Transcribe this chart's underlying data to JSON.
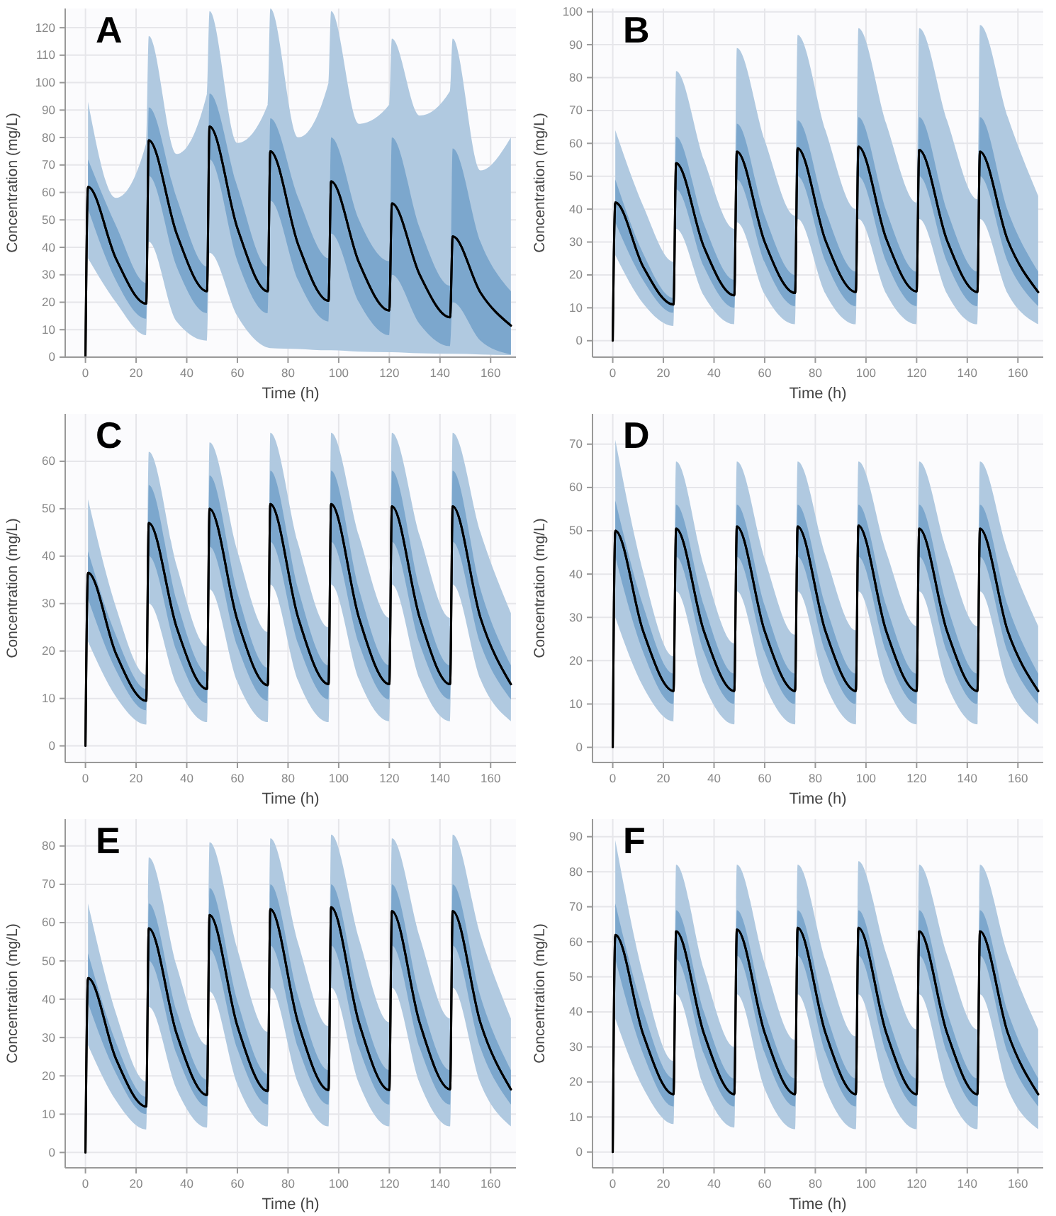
{
  "chart_data": [
    {
      "type": "line",
      "title": "A",
      "xlabel": "Time (h)",
      "ylabel": "Concentration (mg/L)",
      "grid": true,
      "xlim": [
        -8,
        170
      ],
      "xticks": [
        0,
        20,
        40,
        60,
        80,
        100,
        120,
        140,
        160
      ],
      "ylim": [
        0,
        127
      ],
      "yticks": [
        0,
        10,
        20,
        30,
        40,
        50,
        60,
        70,
        80,
        90,
        100,
        110,
        120
      ],
      "x": [
        0,
        1,
        12,
        24,
        25,
        36,
        48,
        49,
        60,
        72,
        73,
        84,
        96,
        97,
        108,
        120,
        121,
        132,
        144,
        145,
        156,
        168
      ],
      "series": [
        {
          "color": "#000000",
          "values": [
            0,
            62,
            36,
            19.5,
            79,
            45,
            24,
            84,
            47,
            24,
            75,
            41,
            20.5,
            64,
            34.5,
            17,
            56,
            30,
            14.5,
            44,
            23.5,
            11.5
          ],
          "lower": [
            null,
            36,
            20,
            8,
            42,
            13,
            6,
            38,
            15,
            3.5,
            3.3,
            3,
            2.5,
            2.5,
            2,
            1.8,
            1.8,
            1.4,
            1.2,
            1.2,
            1,
            0.8
          ],
          "upper": [
            null,
            93,
            58,
            78,
            117,
            74,
            96,
            126,
            78,
            92,
            127,
            80,
            100,
            126,
            85,
            92,
            116,
            88,
            97,
            116,
            68,
            80
          ]
        },
        {
          "color": "#000000",
          "values": [
            0,
            62,
            36,
            19.5,
            79,
            45,
            24,
            84,
            47,
            24,
            75,
            41,
            20.5,
            64,
            34.5,
            17,
            56,
            30,
            14.5,
            44,
            23.5,
            11.5
          ],
          "lower": [
            null,
            54,
            28,
            14,
            66,
            33,
            16,
            72,
            35,
            16,
            57,
            28,
            13,
            45,
            20,
            8,
            30,
            12,
            4,
            20,
            6,
            1
          ],
          "upper": [
            null,
            72,
            48,
            27,
            91,
            58,
            33,
            96,
            62,
            33,
            87,
            58,
            36,
            80,
            50,
            35,
            80,
            47,
            26,
            76,
            42,
            24
          ]
        }
      ]
    },
    {
      "type": "line",
      "title": "B",
      "xlabel": "Time (h)",
      "ylabel": "Concentration (mg/L)",
      "grid": true,
      "xlim": [
        -8,
        170
      ],
      "xticks": [
        0,
        20,
        40,
        60,
        80,
        100,
        120,
        140,
        160
      ],
      "ylim": [
        -5,
        101
      ],
      "yticks": [
        0,
        10,
        20,
        30,
        40,
        50,
        60,
        70,
        80,
        90,
        100
      ],
      "x": [
        0,
        1,
        12,
        24,
        25,
        36,
        48,
        49,
        60,
        72,
        73,
        84,
        96,
        97,
        108,
        120,
        121,
        132,
        144,
        145,
        156,
        168
      ],
      "series": [
        {
          "color": "#000000",
          "values": [
            0,
            42,
            22.5,
            11,
            54,
            28.5,
            13.8,
            57.5,
            30,
            14.5,
            58.5,
            30.5,
            14.8,
            59,
            31,
            15,
            58,
            30.5,
            14.8,
            57.5,
            30.5,
            14.8
          ],
          "lower": [
            null,
            26,
            11.3,
            4.5,
            34,
            13.7,
            5,
            36,
            14.1,
            5,
            37,
            14.3,
            5,
            37,
            14.3,
            5,
            37,
            14.3,
            5,
            37,
            14.3,
            5
          ],
          "upper": [
            null,
            64,
            41,
            24,
            82,
            55,
            34,
            89,
            61,
            38,
            93,
            64,
            40,
            95,
            66,
            42,
            95,
            67,
            43,
            96,
            68,
            44
          ]
        },
        {
          "color": "#000000",
          "values": [
            0,
            42,
            22.5,
            11,
            54,
            28.5,
            13.8,
            57.5,
            30,
            14.5,
            58.5,
            30.5,
            14.8,
            59,
            31,
            15,
            58,
            30.5,
            14.8,
            57.5,
            30.5,
            14.8
          ],
          "lower": [
            null,
            36,
            18.4,
            8.5,
            46,
            22.5,
            10,
            49,
            23.8,
            10.5,
            50,
            24,
            10.5,
            50,
            24,
            10.5,
            50,
            24,
            10.5,
            50,
            24,
            10.5
          ],
          "upper": [
            null,
            49,
            26.5,
            13,
            62,
            35.5,
            18.5,
            66,
            38,
            20,
            67,
            39.5,
            21,
            68,
            39.5,
            21,
            68,
            39.5,
            21,
            68,
            39.5,
            21
          ]
        }
      ]
    },
    {
      "type": "line",
      "title": "C",
      "xlabel": "Time (h)",
      "ylabel": "Concentration (mg/L)",
      "grid": true,
      "xlim": [
        -8,
        170
      ],
      "xticks": [
        0,
        20,
        40,
        60,
        80,
        100,
        120,
        140,
        160
      ],
      "ylim": [
        -3.5,
        70
      ],
      "yticks": [
        0,
        10,
        20,
        30,
        40,
        50,
        60
      ],
      "x": [
        0,
        1,
        12,
        24,
        25,
        36,
        48,
        49,
        60,
        72,
        73,
        84,
        96,
        97,
        108,
        120,
        121,
        132,
        144,
        145,
        156,
        168
      ],
      "series": [
        {
          "color": "#000000",
          "values": [
            0,
            36.5,
            19.5,
            9.5,
            47,
            25,
            12,
            50,
            26.5,
            12.8,
            51,
            27,
            13,
            51,
            27,
            13,
            50.5,
            27,
            13,
            50.5,
            27,
            13
          ],
          "lower": [
            null,
            22,
            10.4,
            4.5,
            30,
            12.9,
            5,
            33,
            13.5,
            5,
            34,
            13.7,
            5,
            34,
            14,
            5.2,
            34,
            14,
            5.2,
            34,
            14,
            5.2
          ],
          "upper": [
            null,
            52,
            29.3,
            15,
            62,
            38,
            21,
            64,
            41,
            24,
            66,
            42.6,
            25,
            66,
            44.3,
            27,
            66,
            44.3,
            27,
            66,
            45,
            28
          ]
        },
        {
          "color": "#000000",
          "values": [
            0,
            36.5,
            19.5,
            9.5,
            47,
            25,
            12,
            50,
            26.5,
            12.8,
            51,
            27,
            13,
            51,
            27,
            13,
            50.5,
            27,
            13,
            50.5,
            27,
            13
          ],
          "lower": [
            null,
            31,
            16,
            7.5,
            40,
            20,
            9,
            42,
            21,
            9.5,
            43,
            21.5,
            9.8,
            43,
            21.5,
            9.8,
            43,
            21.5,
            9.8,
            43,
            21.5,
            9.8
          ],
          "upper": [
            null,
            41,
            23.3,
            12,
            55,
            30.6,
            15.5,
            57,
            32.2,
            16.5,
            58,
            33,
            17,
            58,
            33,
            17,
            58,
            33,
            17,
            58,
            33,
            17
          ]
        }
      ]
    },
    {
      "type": "line",
      "title": "D",
      "xlabel": "Time (h)",
      "ylabel": "Concentration (mg/L)",
      "grid": true,
      "xlim": [
        -8,
        170
      ],
      "xticks": [
        0,
        20,
        40,
        60,
        80,
        100,
        120,
        140,
        160
      ],
      "ylim": [
        -3.5,
        77
      ],
      "yticks": [
        0,
        10,
        20,
        30,
        40,
        50,
        60,
        70
      ],
      "x": [
        0,
        1,
        12,
        24,
        25,
        36,
        48,
        49,
        60,
        72,
        73,
        84,
        96,
        97,
        108,
        120,
        121,
        132,
        144,
        145,
        156,
        168
      ],
      "series": [
        {
          "color": "#000000",
          "values": [
            0,
            50,
            26.8,
            13,
            50.5,
            26.8,
            13,
            51,
            26.8,
            13,
            51,
            26.8,
            13,
            51.2,
            26.8,
            13,
            50.5,
            26.8,
            13,
            50.5,
            26.8,
            13
          ],
          "lower": [
            null,
            30,
            14,
            6,
            36,
            14.5,
            5.3,
            36,
            14.5,
            5.3,
            36,
            14.5,
            5.3,
            36,
            14.5,
            5.3,
            36,
            14.5,
            5.3,
            36,
            14.5,
            5.3
          ],
          "upper": [
            null,
            71,
            40.5,
            21,
            66,
            41.8,
            24,
            66,
            43.5,
            26,
            66,
            44.3,
            27,
            66,
            45.1,
            28,
            66,
            45.1,
            28,
            66,
            45.1,
            28
          ]
        },
        {
          "color": "#000000",
          "values": [
            0,
            50,
            26.8,
            13,
            50.5,
            26.8,
            13,
            51,
            26.8,
            13,
            51,
            26.8,
            13,
            51.2,
            26.8,
            13,
            50.5,
            26.8,
            13,
            50.5,
            26.8,
            13
          ],
          "lower": [
            null,
            44,
            22,
            10,
            44,
            22,
            10,
            44,
            22,
            10,
            44,
            22,
            10,
            44,
            22,
            10,
            44,
            22,
            10,
            44,
            22,
            10
          ],
          "upper": [
            null,
            57,
            32.7,
            17,
            56,
            32.7,
            17,
            56,
            32.7,
            17,
            56,
            32.7,
            17,
            56,
            32.7,
            17,
            56,
            32.7,
            17,
            56,
            32.7,
            17
          ]
        }
      ]
    },
    {
      "type": "line",
      "title": "E",
      "xlabel": "Time (h)",
      "ylabel": "Concentration (mg/L)",
      "grid": true,
      "xlim": [
        -8,
        170
      ],
      "xticks": [
        0,
        20,
        40,
        60,
        80,
        100,
        120,
        140,
        160
      ],
      "ylim": [
        -4,
        87
      ],
      "yticks": [
        0,
        10,
        20,
        30,
        40,
        50,
        60,
        70,
        80
      ],
      "x": [
        0,
        1,
        12,
        24,
        25,
        36,
        48,
        49,
        60,
        72,
        73,
        84,
        96,
        97,
        108,
        120,
        121,
        132,
        144,
        145,
        156,
        168
      ],
      "series": [
        {
          "color": "#000000",
          "values": [
            0,
            45.5,
            24.5,
            12,
            58.5,
            31,
            15,
            62,
            33,
            16,
            63.5,
            33.8,
            16.3,
            64,
            33.9,
            16.3,
            63,
            33.8,
            16.5,
            63,
            33.8,
            16.5
          ],
          "lower": [
            null,
            28,
            13.6,
            6,
            38,
            16.5,
            6.5,
            42,
            17.7,
            6.8,
            43,
            18,
            6.8,
            43,
            18,
            6.8,
            43,
            18,
            6.8,
            43,
            18,
            6.8
          ],
          "upper": [
            null,
            65,
            36.4,
            18.5,
            77,
            48.7,
            28,
            81,
            53,
            31.5,
            82,
            54.6,
            33,
            83,
            55.8,
            34,
            82,
            56.2,
            35,
            83,
            56.6,
            35
          ]
        },
        {
          "color": "#000000",
          "values": [
            0,
            45.5,
            24.5,
            12,
            58.5,
            31,
            15,
            62,
            33,
            16,
            63.5,
            33.8,
            16.3,
            64,
            33.9,
            16.3,
            63,
            33.8,
            16.5,
            63,
            33.8,
            16.5
          ],
          "lower": [
            null,
            39,
            20.7,
            10,
            50,
            25.7,
            12,
            53,
            27,
            12.5,
            54,
            27.3,
            12.5,
            54,
            27.3,
            12.5,
            54,
            27.3,
            12.5,
            54,
            27.3,
            12.5
          ],
          "upper": [
            null,
            52,
            28.8,
            14.5,
            65,
            36.9,
            19,
            69,
            39.5,
            20.5,
            70,
            40.7,
            21.5,
            70,
            40.7,
            21.5,
            70,
            40.7,
            21.5,
            70,
            40.7,
            21.5
          ]
        }
      ]
    },
    {
      "type": "line",
      "title": "F",
      "xlabel": "Time (h)",
      "ylabel": "Concentration (mg/L)",
      "grid": true,
      "xlim": [
        -8,
        170
      ],
      "xticks": [
        0,
        20,
        40,
        60,
        80,
        100,
        120,
        140,
        160
      ],
      "ylim": [
        -4.5,
        95
      ],
      "yticks": [
        0,
        10,
        20,
        30,
        40,
        50,
        60,
        70,
        80,
        90
      ],
      "x": [
        0,
        1,
        12,
        24,
        25,
        36,
        48,
        49,
        60,
        72,
        73,
        84,
        96,
        97,
        108,
        120,
        121,
        132,
        144,
        145,
        156,
        168
      ],
      "series": [
        {
          "color": "#000000",
          "values": [
            0,
            62,
            33.6,
            16.5,
            63,
            33.8,
            16.5,
            63.5,
            34,
            16.5,
            64,
            34,
            16.5,
            64,
            34,
            16.5,
            63,
            34,
            16.5,
            63,
            34,
            16.5
          ],
          "lower": [
            null,
            38,
            18.3,
            8,
            45,
            18.6,
            7,
            45,
            18,
            6.5,
            45,
            18,
            6.5,
            45,
            18,
            6.5,
            45,
            18,
            6.5,
            45,
            18,
            6.5
          ],
          "upper": [
            null,
            89,
            50.5,
            26,
            82,
            52,
            30,
            82,
            53.8,
            32,
            82,
            54.6,
            33,
            83,
            56.6,
            35,
            82,
            56.2,
            35,
            82,
            56.2,
            35
          ]
        },
        {
          "color": "#000000",
          "values": [
            0,
            62,
            33.6,
            16.5,
            63,
            33.8,
            16.5,
            63.5,
            34,
            16.5,
            64,
            34,
            16.5,
            64,
            34,
            16.5,
            63,
            34,
            16.5,
            63,
            34,
            16.5
          ],
          "lower": [
            null,
            55,
            28,
            13,
            55,
            28,
            13,
            56,
            28.3,
            13,
            56,
            28.3,
            13,
            56,
            28.3,
            13,
            56,
            28.3,
            13,
            56,
            28.3,
            13
          ],
          "upper": [
            null,
            71,
            40.5,
            21,
            69,
            40,
            21,
            69,
            40,
            21,
            69,
            40,
            21,
            69,
            40,
            21,
            69,
            40,
            21,
            69,
            40,
            21
          ]
        }
      ]
    }
  ]
}
